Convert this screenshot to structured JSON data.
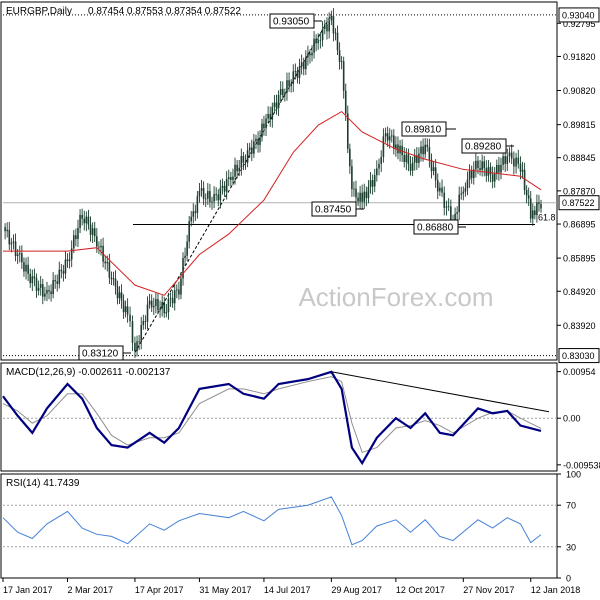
{
  "chart_data": [
    {
      "type": "candlestick",
      "title": "EURGBP,Daily",
      "ohlc_label": "0.87454 0.87553 0.87354 0.87522",
      "ylim": [
        0.829,
        0.9342
      ],
      "yticks": [
        "0.92795",
        "0.91820",
        "0.90820",
        "0.89815",
        "0.88845",
        "0.87870",
        "0.86895",
        "0.85895",
        "0.84920",
        "0.83920"
      ],
      "last_price": "0.87522",
      "levels": [
        {
          "label": "0.93040",
          "value": 0.9304,
          "style": "dotted",
          "color": "#000000"
        },
        {
          "label": "0.83030",
          "value": 0.8303,
          "style": "dotted",
          "color": "#000000"
        }
      ],
      "annotations": [
        {
          "label": "0.93050",
          "value": 0.9305,
          "at": "Aug 2017 peak"
        },
        {
          "label": "0.89810",
          "value": 0.8981,
          "at": "Oct 2017"
        },
        {
          "label": "0.89280",
          "value": 0.8928,
          "at": "Dec 2017"
        },
        {
          "label": "0.87450",
          "value": 0.8745,
          "at": "Sep 2017 low"
        },
        {
          "label": "0.86880",
          "value": 0.8688,
          "at": "Nov 2017 low"
        },
        {
          "label": "0.83120",
          "value": 0.8312,
          "at": "Apr 2017 low"
        }
      ],
      "fib_label": "61.8",
      "fib_value": 0.8688,
      "watermark": "ActionForex.com",
      "close_series": [
        {
          "x": "17 Jan 2017",
          "y": 0.868
        },
        {
          "x": "27 Jan 2017",
          "y": 0.86
        },
        {
          "x": "06 Feb 2017",
          "y": 0.852
        },
        {
          "x": "16 Feb 2017",
          "y": 0.848
        },
        {
          "x": "02 Mar 2017",
          "y": 0.858
        },
        {
          "x": "12 Mar 2017",
          "y": 0.872
        },
        {
          "x": "22 Mar 2017",
          "y": 0.864
        },
        {
          "x": "01 Apr 2017",
          "y": 0.853
        },
        {
          "x": "12 Apr 2017",
          "y": 0.842
        },
        {
          "x": "17 Apr 2017",
          "y": 0.832
        },
        {
          "x": "27 Apr 2017",
          "y": 0.846
        },
        {
          "x": "07 May 2017",
          "y": 0.844
        },
        {
          "x": "17 May 2017",
          "y": 0.85
        },
        {
          "x": "24 May 2017",
          "y": 0.868
        },
        {
          "x": "31 May 2017",
          "y": 0.878
        },
        {
          "x": "10 Jun 2017",
          "y": 0.876
        },
        {
          "x": "20 Jun 2017",
          "y": 0.882
        },
        {
          "x": "30 Jun 2017",
          "y": 0.888
        },
        {
          "x": "10 Jul 2017",
          "y": 0.894
        },
        {
          "x": "14 Jul 2017",
          "y": 0.898
        },
        {
          "x": "24 Jul 2017",
          "y": 0.906
        },
        {
          "x": "03 Aug 2017",
          "y": 0.912
        },
        {
          "x": "13 Aug 2017",
          "y": 0.918
        },
        {
          "x": "20 Aug 2017",
          "y": 0.924
        },
        {
          "x": "29 Aug 2017",
          "y": 0.929
        },
        {
          "x": "05 Sep 2017",
          "y": 0.915
        },
        {
          "x": "12 Sep 2017",
          "y": 0.878
        },
        {
          "x": "19 Sep 2017",
          "y": 0.876
        },
        {
          "x": "29 Sep 2017",
          "y": 0.884
        },
        {
          "x": "05 Oct 2017",
          "y": 0.896
        },
        {
          "x": "12 Oct 2017",
          "y": 0.892
        },
        {
          "x": "22 Oct 2017",
          "y": 0.886
        },
        {
          "x": "01 Nov 2017",
          "y": 0.892
        },
        {
          "x": "11 Nov 2017",
          "y": 0.878
        },
        {
          "x": "20 Nov 2017",
          "y": 0.87
        },
        {
          "x": "27 Nov 2017",
          "y": 0.88
        },
        {
          "x": "07 Dec 2017",
          "y": 0.887
        },
        {
          "x": "17 Dec 2017",
          "y": 0.883
        },
        {
          "x": "27 Dec 2017",
          "y": 0.889
        },
        {
          "x": "05 Jan 2018",
          "y": 0.886
        },
        {
          "x": "12 Jan 2018",
          "y": 0.872
        },
        {
          "x": "19 Jan 2018",
          "y": 0.8752
        }
      ],
      "ma_series": [
        {
          "x": "17 Jan 2017",
          "y": 0.861
        },
        {
          "x": "02 Mar 2017",
          "y": 0.861
        },
        {
          "x": "22 Mar 2017",
          "y": 0.862
        },
        {
          "x": "17 Apr 2017",
          "y": 0.851
        },
        {
          "x": "07 May 2017",
          "y": 0.848
        },
        {
          "x": "31 May 2017",
          "y": 0.86
        },
        {
          "x": "20 Jun 2017",
          "y": 0.866
        },
        {
          "x": "14 Jul 2017",
          "y": 0.876
        },
        {
          "x": "03 Aug 2017",
          "y": 0.89
        },
        {
          "x": "20 Aug 2017",
          "y": 0.898
        },
        {
          "x": "05 Sep 2017",
          "y": 0.902
        },
        {
          "x": "19 Sep 2017",
          "y": 0.896
        },
        {
          "x": "12 Oct 2017",
          "y": 0.891
        },
        {
          "x": "01 Nov 2017",
          "y": 0.888
        },
        {
          "x": "27 Nov 2017",
          "y": 0.885
        },
        {
          "x": "17 Dec 2017",
          "y": 0.884
        },
        {
          "x": "05 Jan 2018",
          "y": 0.883
        },
        {
          "x": "19 Jan 2018",
          "y": 0.879
        }
      ],
      "trendlines": [
        {
          "from": {
            "x": "17 Apr 2017",
            "y": 0.8312
          },
          "to": {
            "x": "29 Aug 2017",
            "y": 0.9305
          },
          "style": "dashed"
        },
        {
          "from": {
            "x": "17 Jan 2017",
            "y": 0.8688
          },
          "to": {
            "x": "19 Jan 2018",
            "y": 0.8688
          },
          "style": "solid"
        }
      ]
    },
    {
      "type": "line",
      "title": "MACD(12,26,9) -0.002611 -0.002137",
      "ylim": [
        -0.0108,
        0.0113
      ],
      "yticks": [
        "0.00954",
        "0.00",
        "-0.009538"
      ],
      "series": [
        {
          "name": "",
          "color": "#000080",
          "points": [
            {
              "x": "17 Jan 2017",
              "y": 0.0045
            },
            {
              "x": "27 Jan 2017",
              "y": 0.0005
            },
            {
              "x": "06 Feb 2017",
              "y": -0.003
            },
            {
              "x": "16 Feb 2017",
              "y": 0.002
            },
            {
              "x": "02 Mar 2017",
              "y": 0.007
            },
            {
              "x": "12 Mar 2017",
              "y": 0.004
            },
            {
              "x": "22 Mar 2017",
              "y": -0.002
            },
            {
              "x": "01 Apr 2017",
              "y": -0.0055
            },
            {
              "x": "12 Apr 2017",
              "y": -0.006
            },
            {
              "x": "27 Apr 2017",
              "y": -0.003
            },
            {
              "x": "07 May 2017",
              "y": -0.005
            },
            {
              "x": "17 May 2017",
              "y": -0.002
            },
            {
              "x": "31 May 2017",
              "y": 0.006
            },
            {
              "x": "20 Jun 2017",
              "y": 0.007
            },
            {
              "x": "30 Jun 2017",
              "y": 0.005
            },
            {
              "x": "14 Jul 2017",
              "y": 0.004
            },
            {
              "x": "24 Jul 2017",
              "y": 0.007
            },
            {
              "x": "13 Aug 2017",
              "y": 0.008
            },
            {
              "x": "29 Aug 2017",
              "y": 0.0095
            },
            {
              "x": "05 Sep 2017",
              "y": 0.006
            },
            {
              "x": "12 Sep 2017",
              "y": -0.006
            },
            {
              "x": "19 Sep 2017",
              "y": -0.0092
            },
            {
              "x": "29 Sep 2017",
              "y": -0.004
            },
            {
              "x": "12 Oct 2017",
              "y": 0.0
            },
            {
              "x": "22 Oct 2017",
              "y": -0.002
            },
            {
              "x": "01 Nov 2017",
              "y": 0.001
            },
            {
              "x": "11 Nov 2017",
              "y": -0.003
            },
            {
              "x": "20 Nov 2017",
              "y": -0.0035
            },
            {
              "x": "07 Dec 2017",
              "y": 0.002
            },
            {
              "x": "17 Dec 2017",
              "y": 0.001
            },
            {
              "x": "27 Dec 2017",
              "y": 0.0015
            },
            {
              "x": "05 Jan 2018",
              "y": -0.0015
            },
            {
              "x": "19 Jan 2018",
              "y": -0.0026
            }
          ]
        },
        {
          "name": "",
          "color": "#909090",
          "points": [
            {
              "x": "17 Jan 2017",
              "y": 0.003
            },
            {
              "x": "27 Jan 2017",
              "y": 0.0015
            },
            {
              "x": "06 Feb 2017",
              "y": -0.001
            },
            {
              "x": "16 Feb 2017",
              "y": 0.0005
            },
            {
              "x": "02 Mar 2017",
              "y": 0.005
            },
            {
              "x": "12 Mar 2017",
              "y": 0.005
            },
            {
              "x": "22 Mar 2017",
              "y": 0.001
            },
            {
              "x": "01 Apr 2017",
              "y": -0.0035
            },
            {
              "x": "12 Apr 2017",
              "y": -0.0055
            },
            {
              "x": "27 Apr 2017",
              "y": -0.004
            },
            {
              "x": "07 May 2017",
              "y": -0.004
            },
            {
              "x": "17 May 2017",
              "y": -0.003
            },
            {
              "x": "31 May 2017",
              "y": 0.003
            },
            {
              "x": "20 Jun 2017",
              "y": 0.006
            },
            {
              "x": "30 Jun 2017",
              "y": 0.006
            },
            {
              "x": "14 Jul 2017",
              "y": 0.005
            },
            {
              "x": "24 Jul 2017",
              "y": 0.006
            },
            {
              "x": "13 Aug 2017",
              "y": 0.0075
            },
            {
              "x": "29 Aug 2017",
              "y": 0.0085
            },
            {
              "x": "05 Sep 2017",
              "y": 0.0075
            },
            {
              "x": "12 Sep 2017",
              "y": -0.001
            },
            {
              "x": "19 Sep 2017",
              "y": -0.007
            },
            {
              "x": "29 Sep 2017",
              "y": -0.006
            },
            {
              "x": "12 Oct 2017",
              "y": -0.002
            },
            {
              "x": "22 Oct 2017",
              "y": -0.0015
            },
            {
              "x": "01 Nov 2017",
              "y": -0.0005
            },
            {
              "x": "11 Nov 2017",
              "y": -0.0015
            },
            {
              "x": "20 Nov 2017",
              "y": -0.003
            },
            {
              "x": "07 Dec 2017",
              "y": 0.0
            },
            {
              "x": "17 Dec 2017",
              "y": 0.0012
            },
            {
              "x": "27 Dec 2017",
              "y": 0.0015
            },
            {
              "x": "05 Jan 2018",
              "y": 0.0
            },
            {
              "x": "19 Jan 2018",
              "y": -0.0021
            }
          ]
        }
      ],
      "trendline": {
        "from": {
          "x": "29 Aug 2017",
          "y": 0.0095
        },
        "to": {
          "x": "19 Jan 2018",
          "y": 0.0005
        }
      }
    },
    {
      "type": "line",
      "title": "RSI(14) 41.7439",
      "ylim": [
        0,
        100
      ],
      "yticks": [
        "100",
        "70",
        "30",
        "0"
      ],
      "levels": [
        70,
        30
      ],
      "series": [
        {
          "name": "",
          "color": "#4682d8",
          "points": [
            {
              "x": "17 Jan 2017",
              "y": 58
            },
            {
              "x": "27 Jan 2017",
              "y": 44
            },
            {
              "x": "06 Feb 2017",
              "y": 38
            },
            {
              "x": "16 Feb 2017",
              "y": 52
            },
            {
              "x": "02 Mar 2017",
              "y": 64
            },
            {
              "x": "12 Mar 2017",
              "y": 48
            },
            {
              "x": "22 Mar 2017",
              "y": 42
            },
            {
              "x": "01 Apr 2017",
              "y": 40
            },
            {
              "x": "12 Apr 2017",
              "y": 33
            },
            {
              "x": "27 Apr 2017",
              "y": 52
            },
            {
              "x": "07 May 2017",
              "y": 46
            },
            {
              "x": "17 May 2017",
              "y": 55
            },
            {
              "x": "31 May 2017",
              "y": 62
            },
            {
              "x": "20 Jun 2017",
              "y": 58
            },
            {
              "x": "30 Jun 2017",
              "y": 64
            },
            {
              "x": "14 Jul 2017",
              "y": 55
            },
            {
              "x": "24 Jul 2017",
              "y": 66
            },
            {
              "x": "13 Aug 2017",
              "y": 70
            },
            {
              "x": "29 Aug 2017",
              "y": 78
            },
            {
              "x": "05 Sep 2017",
              "y": 60
            },
            {
              "x": "12 Sep 2017",
              "y": 32
            },
            {
              "x": "19 Sep 2017",
              "y": 36
            },
            {
              "x": "29 Sep 2017",
              "y": 50
            },
            {
              "x": "12 Oct 2017",
              "y": 56
            },
            {
              "x": "22 Oct 2017",
              "y": 44
            },
            {
              "x": "01 Nov 2017",
              "y": 56
            },
            {
              "x": "11 Nov 2017",
              "y": 40
            },
            {
              "x": "20 Nov 2017",
              "y": 36
            },
            {
              "x": "07 Dec 2017",
              "y": 56
            },
            {
              "x": "17 Dec 2017",
              "y": 48
            },
            {
              "x": "27 Dec 2017",
              "y": 58
            },
            {
              "x": "05 Jan 2018",
              "y": 52
            },
            {
              "x": "12 Jan 2018",
              "y": 34
            },
            {
              "x": "19 Jan 2018",
              "y": 41.7439
            }
          ]
        }
      ]
    }
  ],
  "xaxis": {
    "domain": [
      "17 Jan 2017",
      "19 Jan 2018"
    ],
    "ticks": [
      "17 Jan 2017",
      "2 Mar 2017",
      "17 Apr 2017",
      "31 May 2017",
      "14 Jul 2017",
      "29 Aug 2017",
      "12 Oct 2017",
      "27 Nov 2017",
      "12 Jan 2018"
    ]
  },
  "colors": {
    "candle": "#1a3d2e",
    "ma": "#d22020",
    "macd": "#000080",
    "signal": "#909090",
    "rsi": "#4682d8",
    "trend": "#000000",
    "watermark": "#c8c8c8"
  }
}
